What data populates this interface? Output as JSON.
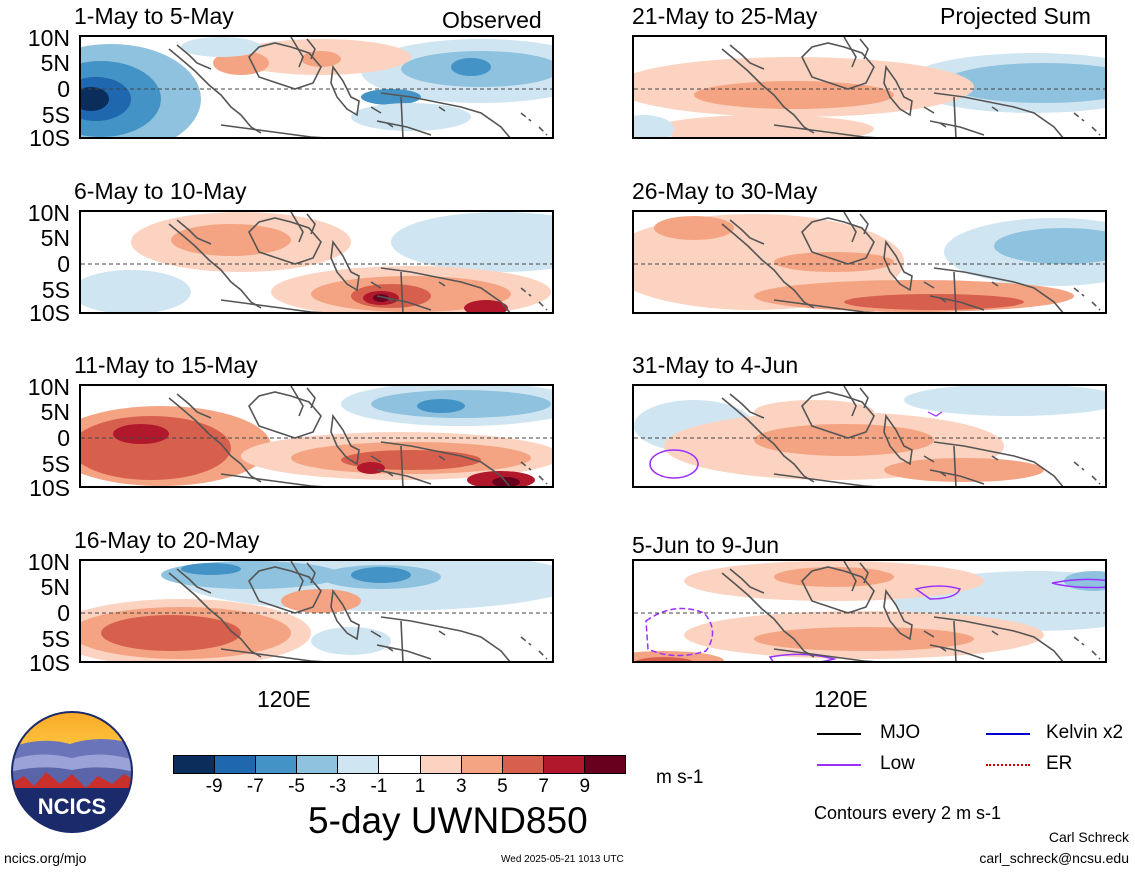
{
  "panels_left": [
    {
      "title": "1-May to 5-May",
      "tag": "Observed"
    },
    {
      "title": "6-May to 10-May",
      "tag": ""
    },
    {
      "title": "11-May to 15-May",
      "tag": ""
    },
    {
      "title": "16-May to 20-May",
      "tag": ""
    }
  ],
  "panels_right": [
    {
      "title": "21-May to 25-May",
      "tag": "Projected Sum"
    },
    {
      "title": "26-May to 30-May",
      "tag": ""
    },
    {
      "title": "31-May to 4-Jun",
      "tag": ""
    },
    {
      "title": "5-Jun to 9-Jun",
      "tag": ""
    }
  ],
  "y_labels": [
    "10N",
    "5N",
    "0",
    "5S",
    "10S"
  ],
  "x_label": "120E",
  "colorbar": {
    "ticks": [
      "-9",
      "-7",
      "-5",
      "-3",
      "-1",
      "1",
      "3",
      "5",
      "7",
      "9"
    ],
    "colors": [
      "#0b2d5b",
      "#1f67ae",
      "#4493c6",
      "#8ec2de",
      "#cfe6f2",
      "#ffffff",
      "#fbd3c0",
      "#f4a482",
      "#d6604d",
      "#b2182b",
      "#67001f"
    ],
    "units": "m s-1",
    "title": "5-day UWND850"
  },
  "legend": {
    "items": [
      {
        "label": "MJO",
        "color": "#000000",
        "style": "solid"
      },
      {
        "label": "Kelvin x2",
        "color": "#0000cc",
        "style": "solid"
      },
      {
        "label": "Low",
        "color": "#9b30ff",
        "style": "solid"
      },
      {
        "label": "ER",
        "color": "#cc0000",
        "style": "dotted"
      }
    ],
    "note": "Contours every 2 m s-1"
  },
  "logo": {
    "text": "NCICS"
  },
  "footer": {
    "url": "ncics.org/mjo",
    "timestamp": "Wed 2025-05-21 1013 UTC",
    "author": "Carl Schreck",
    "email": "carl_schreck@ncsu.edu"
  }
}
